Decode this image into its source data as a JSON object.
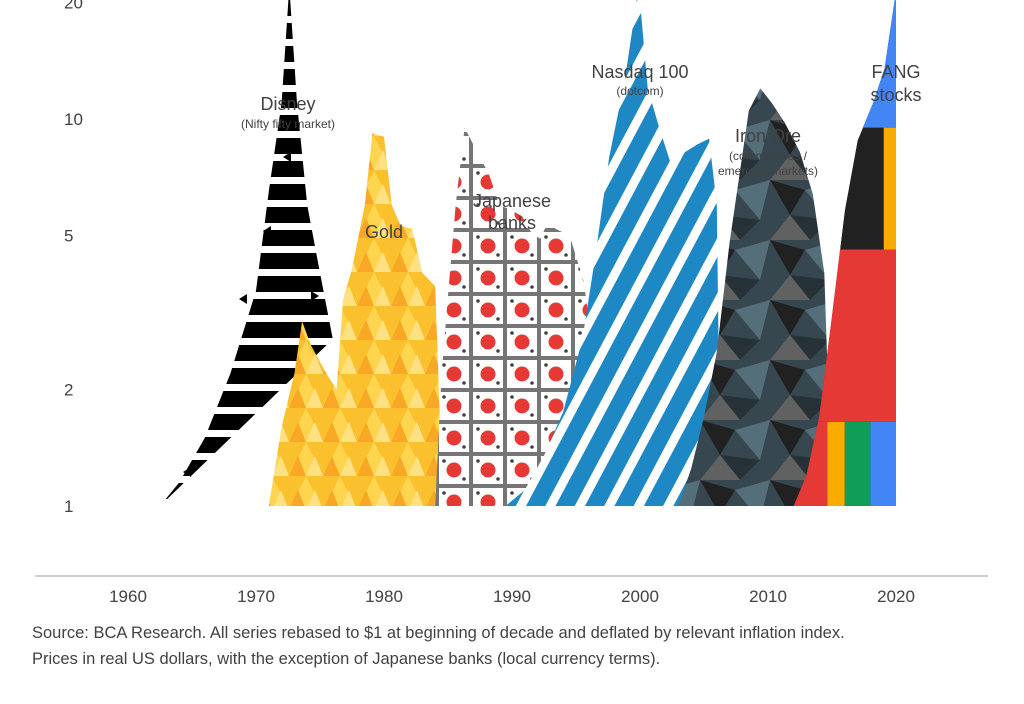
{
  "chart_data": {
    "type": "area",
    "title": "",
    "xlabel": "",
    "ylabel": "",
    "x_ticks": [
      "1960",
      "1970",
      "1980",
      "1990",
      "2000",
      "2010",
      "2020"
    ],
    "y_ticks": [
      "1",
      "2",
      "5",
      "10",
      "20"
    ],
    "y_scale": "log",
    "xlim": [
      1959,
      2027
    ],
    "ylim": [
      1,
      23
    ],
    "series": [
      {
        "name": "Disney",
        "subtitle": "(Nifty fifty market)",
        "color": "#000000",
        "points": [
          [
            1962.5,
            1
          ],
          [
            1964,
            1.15
          ],
          [
            1966,
            1.5
          ],
          [
            1968,
            2.2
          ],
          [
            1970,
            3.6
          ],
          [
            1971,
            6.5
          ],
          [
            1972,
            11
          ],
          [
            1972.6,
            22
          ],
          [
            1973.2,
            11
          ],
          [
            1974,
            6
          ],
          [
            1975,
            4
          ],
          [
            1976,
            2.7
          ]
        ]
      },
      {
        "name": "Gold",
        "color": "#fbc02d",
        "points": [
          [
            1971,
            1
          ],
          [
            1972,
            1.6
          ],
          [
            1973,
            2.2
          ],
          [
            1973.6,
            3
          ],
          [
            1974.3,
            2.6
          ],
          [
            1975.5,
            2.2
          ],
          [
            1976.3,
            2
          ],
          [
            1976.8,
            3.4
          ],
          [
            1977.5,
            4.1
          ],
          [
            1978.5,
            6
          ],
          [
            1979.1,
            9.2
          ],
          [
            1980,
            9
          ],
          [
            1980.6,
            6
          ],
          [
            1981.3,
            5.3
          ],
          [
            1982.2,
            5.2
          ],
          [
            1983,
            4
          ],
          [
            1984,
            3.7
          ],
          [
            1984.6,
            1
          ]
        ]
      },
      {
        "name": "Japanese banks",
        "color": "#e53935",
        "points": [
          [
            1984,
            1
          ],
          [
            1984.5,
            2.2
          ],
          [
            1985,
            3.5
          ],
          [
            1985.6,
            6
          ],
          [
            1986.3,
            9.5
          ],
          [
            1987.2,
            8.3
          ],
          [
            1988.2,
            7.2
          ],
          [
            1989,
            6
          ],
          [
            1990,
            5.8
          ],
          [
            1990.8,
            5.6
          ],
          [
            1991.5,
            5.1
          ],
          [
            1992.2,
            4.9
          ],
          [
            1992.8,
            5.4
          ],
          [
            1993.4,
            5.2
          ],
          [
            1994.5,
            5
          ],
          [
            1995.6,
            3.8
          ],
          [
            1996.6,
            2.2
          ],
          [
            1997,
            1
          ]
        ]
      },
      {
        "name": "Nasdaq 100",
        "subtitle": "(dotcom)",
        "color": "#1e88c4",
        "points": [
          [
            1989.5,
            1
          ],
          [
            1991,
            1.1
          ],
          [
            1992.5,
            1.35
          ],
          [
            1994,
            1.75
          ],
          [
            1995.5,
            2.7
          ],
          [
            1996.5,
            4.4
          ],
          [
            1997.6,
            8
          ],
          [
            1998.8,
            12.5
          ],
          [
            1999.4,
            17
          ],
          [
            1999.9,
            22
          ],
          [
            2000.6,
            12
          ],
          [
            2001.5,
            9.5
          ],
          [
            2002.5,
            7.5
          ],
          [
            2003.5,
            8.2
          ],
          [
            2004.5,
            8.6
          ],
          [
            2005.4,
            8.9
          ],
          [
            2006,
            6
          ],
          [
            2006.3,
            1
          ]
        ]
      },
      {
        "name": "Iron Ore",
        "subtitle": "(commodities / emerging markets)",
        "color": "#37474f",
        "points": [
          [
            2003,
            1
          ],
          [
            2004,
            1.25
          ],
          [
            2005,
            1.7
          ],
          [
            2006,
            2.5
          ],
          [
            2007,
            4.8
          ],
          [
            2008.5,
            10.5
          ],
          [
            2009.4,
            12
          ],
          [
            2010.3,
            11
          ],
          [
            2011.3,
            9.8
          ],
          [
            2012.5,
            8.2
          ],
          [
            2013.5,
            6.4
          ],
          [
            2014.4,
            4
          ],
          [
            2015,
            1
          ]
        ]
      },
      {
        "name": "FANG stocks",
        "color": "#4285f4",
        "segments": [
          "#e53935",
          "#f9ab00",
          "#0f9d58",
          "#4285f4"
        ],
        "points": [
          [
            2012,
            1
          ],
          [
            2013,
            1.2
          ],
          [
            2014,
            1.7
          ],
          [
            2015,
            3.1
          ],
          [
            2016,
            5.8
          ],
          [
            2017,
            8.8
          ],
          [
            2018.2,
            11
          ],
          [
            2019.1,
            13.5
          ],
          [
            2020,
            21.5
          ],
          [
            2020,
            1
          ]
        ]
      }
    ]
  },
  "annotations": {
    "disney_title": "Disney",
    "disney_sub": "(Nifty fifty market)",
    "gold_title": "Gold",
    "japanese_line1": "Japanese",
    "japanese_line2": "banks",
    "nasdaq_title": "Nasdaq 100",
    "nasdaq_sub": "(dotcom)",
    "ironore_title": "Iron Ore",
    "ironore_sub1": "(commodities /",
    "ironore_sub2": "emerging markets)",
    "fang_line1": "FANG",
    "fang_line2": "stocks"
  },
  "source_line1": "Source: BCA Research. All series rebased to $1 at beginning of decade and deflated by relevant inflation index.",
  "source_line2": "Prices in real US dollars, with the exception of Japanese banks (local currency terms)."
}
